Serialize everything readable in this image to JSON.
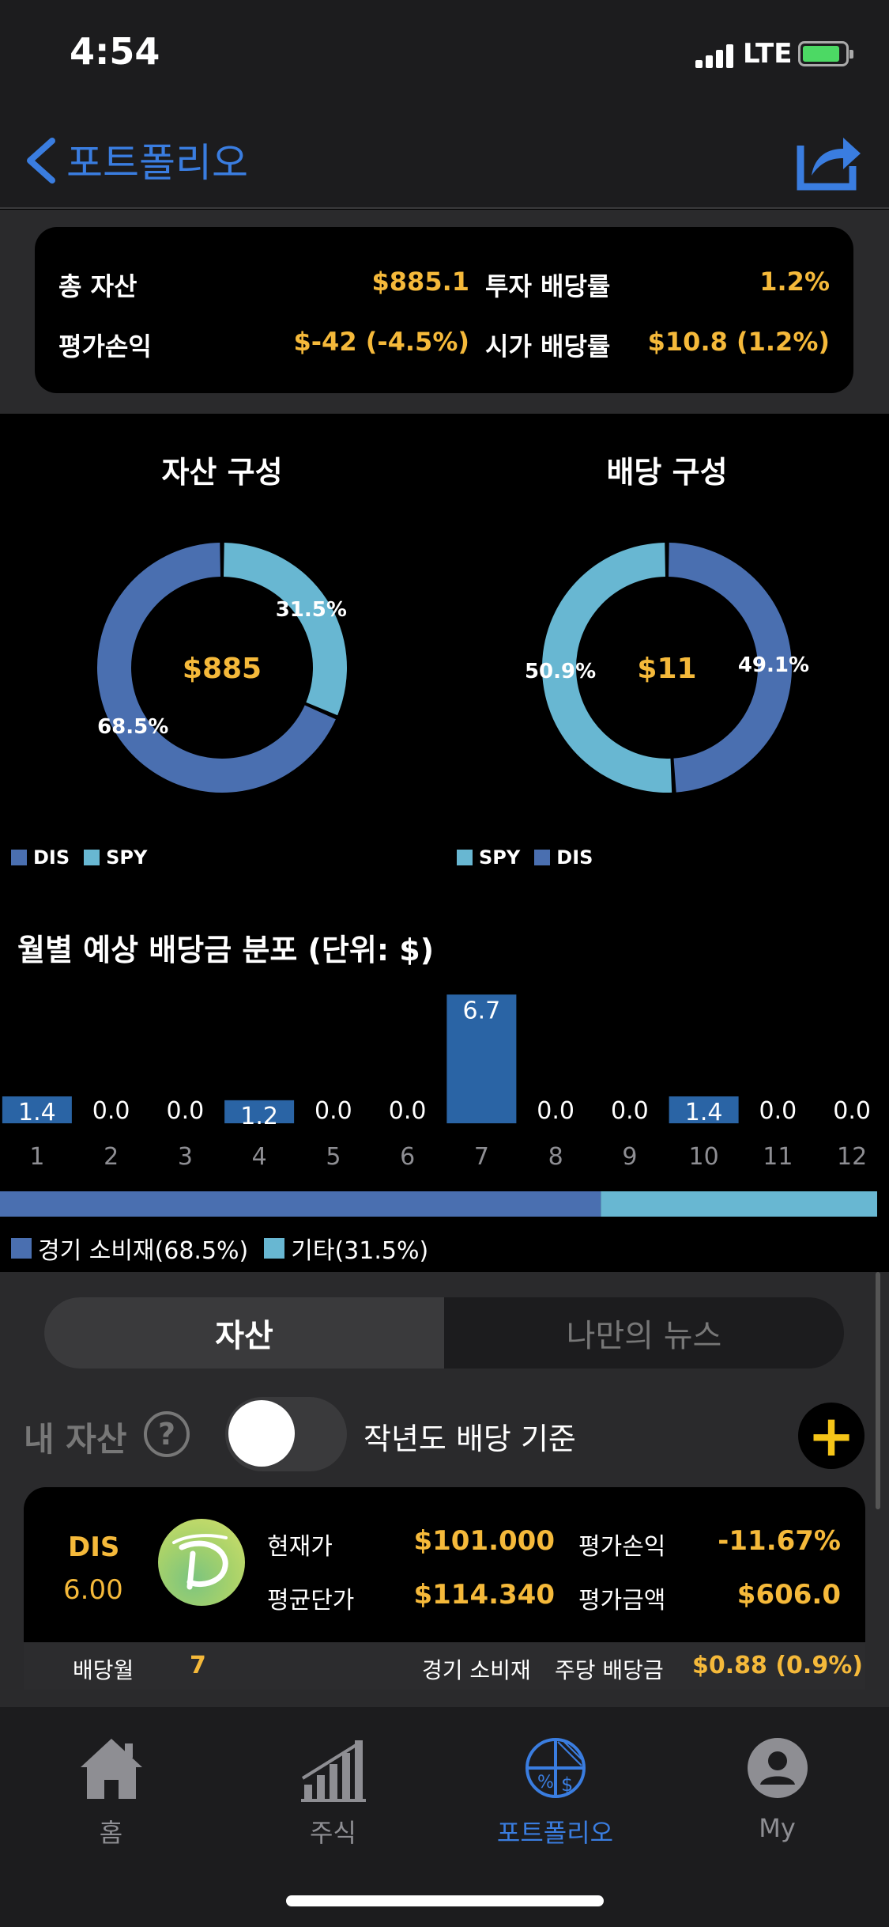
{
  "status": {
    "time": "4:54",
    "network": "LTE"
  },
  "nav": {
    "title": "포트폴리오"
  },
  "summary": {
    "total_assets_label": "총 자산",
    "total_assets_value": "$885.1",
    "invest_yield_label": "투자 배당률",
    "invest_yield_value": "1.2%",
    "pnl_label": "평가손익",
    "pnl_value": "$-42 (-4.5%)",
    "market_yield_label": "시가 배당률",
    "market_yield_value": "$10.8 (1.2%)"
  },
  "asset_chart": {
    "title": "자산 구성",
    "center": "$885",
    "legend": [
      "DIS",
      "SPY"
    ]
  },
  "dividend_chart": {
    "title": "배당 구성",
    "center": "$11",
    "legend": [
      "SPY",
      "DIS"
    ]
  },
  "bar_chart": {
    "title": "월별 예상 배당금 분포 (단위: $)"
  },
  "sector": {
    "legend": [
      "경기 소비재(68.5%)",
      "기타(31.5%)"
    ]
  },
  "chart_data": [
    {
      "type": "pie",
      "title": "자산 구성",
      "center_label": "$885",
      "categories": [
        "DIS",
        "SPY"
      ],
      "values": [
        68.5,
        31.5
      ],
      "labels": [
        "68.5%",
        "31.5%"
      ],
      "colors": [
        "#4a6fb0",
        "#68b7d2"
      ]
    },
    {
      "type": "pie",
      "title": "배당 구성",
      "center_label": "$11",
      "categories": [
        "DIS",
        "SPY"
      ],
      "values": [
        49.1,
        50.9
      ],
      "labels": [
        "49.1%",
        "50.9%"
      ],
      "colors": [
        "#4a6fb0",
        "#68b7d2"
      ]
    },
    {
      "type": "bar",
      "title": "월별 예상 배당금 분포 (단위: $)",
      "categories": [
        "1",
        "2",
        "3",
        "4",
        "5",
        "6",
        "7",
        "8",
        "9",
        "10",
        "11",
        "12"
      ],
      "values": [
        1.4,
        0.0,
        0.0,
        1.2,
        0.0,
        0.0,
        6.7,
        0.0,
        0.0,
        1.4,
        0.0,
        0.0
      ],
      "labels": [
        "1.4",
        "0.0",
        "0.0",
        "1.2",
        "0.0",
        "0.0",
        "6.7",
        "0.0",
        "0.0",
        "1.4",
        "0.0",
        "0.0"
      ],
      "ylim": [
        0,
        7
      ],
      "color": "#2a64a5"
    },
    {
      "type": "bar",
      "stacked": true,
      "categories": [
        "경기 소비재",
        "기타"
      ],
      "values": [
        68.5,
        31.5
      ],
      "colors": [
        "#4a6fb0",
        "#68b7d2"
      ]
    }
  ],
  "segment": {
    "active": "자산",
    "inactive": "나만의 뉴스"
  },
  "asset_header": {
    "label": "내 자산",
    "help": "?",
    "toggle_label": "작년도 배당 기준",
    "add": "+"
  },
  "holding": {
    "ticker": "DIS",
    "quantity": "6.00",
    "price_label": "현재가",
    "price_value": "$101.000",
    "avg_label": "평균단가",
    "avg_value": "$114.340",
    "pnl_label": "평가손익",
    "pnl_value": "-11.67%",
    "value_label": "평가금액",
    "value_value": "$606.0",
    "month_label": "배당월",
    "month_value": "7",
    "sector": "경기 소비재",
    "dps_label": "주당 배당금",
    "dps_value": "$0.88 (0.9%)"
  },
  "tabs": [
    {
      "label": "홈",
      "icon": "home-icon"
    },
    {
      "label": "주식",
      "icon": "chart-icon"
    },
    {
      "label": "포트폴리오",
      "icon": "portfolio-icon"
    },
    {
      "label": "My",
      "icon": "user-icon"
    }
  ],
  "colors": {
    "accent": "#f5b93a",
    "blue": "#3a7de0",
    "dis": "#4a6fb0",
    "spy": "#68b7d2"
  }
}
